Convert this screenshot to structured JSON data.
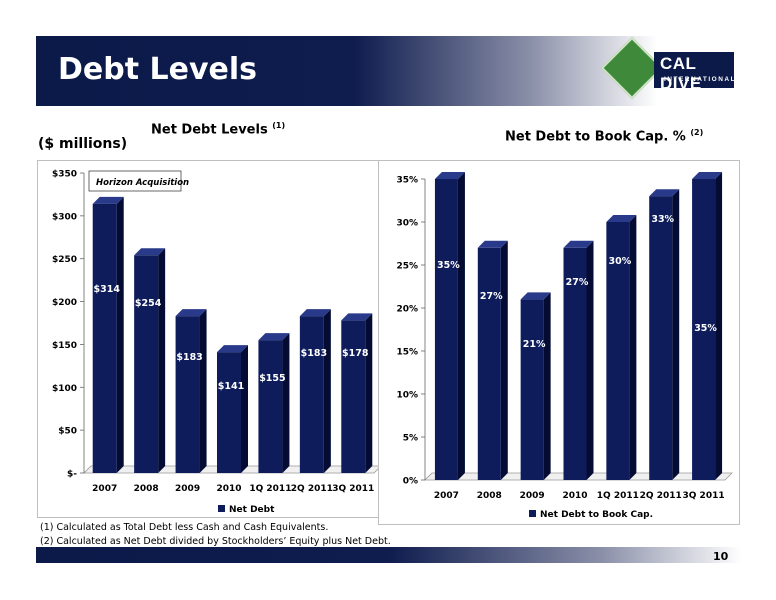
{
  "slide": {
    "title": "Debt Levels",
    "page_number": "10",
    "units_label": "($ millions)",
    "footnotes": [
      "(1)  Calculated as Total Debt less Cash and Cash Equivalents.",
      "(2)  Calculated as Net Debt divided by Stockholders’ Equity plus Net Debt."
    ]
  },
  "logo": {
    "name": "CAL DIVE",
    "sub": "INTERNATIONAL"
  },
  "colors": {
    "bar": "#0e1c5c",
    "bar_side": "#050c33",
    "bar_top": "#2a3a8a",
    "header": "#0c1a4a"
  },
  "chart_data": [
    {
      "type": "bar",
      "title": "Net Debt Levels",
      "title_note": "(1)",
      "categories": [
        "2007",
        "2008",
        "2009",
        "2010",
        "1Q 2011",
        "2Q 2011",
        "3Q 2011"
      ],
      "series": [
        {
          "name": "Net Debt",
          "values": [
            314,
            254,
            183,
            141,
            155,
            183,
            178
          ]
        }
      ],
      "data_labels": [
        "$314",
        "$254",
        "$183",
        "$141",
        "$155",
        "$183",
        "$178"
      ],
      "yticks": [
        "$-",
        "$50",
        "$100",
        "$150",
        "$200",
        "$250",
        "$300",
        "$350"
      ],
      "ylim": [
        0,
        350
      ],
      "annotation": "Horizon Acquisition",
      "legend": "bottom"
    },
    {
      "type": "bar",
      "title": "Net Debt to Book Cap. %",
      "title_note": "(2)",
      "categories": [
        "2007",
        "2008",
        "2009",
        "2010",
        "1Q 2011",
        "2Q 2011",
        "3Q 2011"
      ],
      "series": [
        {
          "name": "Net Debt to Book Cap.",
          "values": [
            35,
            27,
            21,
            27,
            30,
            33,
            35
          ]
        }
      ],
      "data_labels": [
        "35%",
        "27%",
        "21%",
        "27%",
        "30%",
        "33%",
        "35%"
      ],
      "yticks": [
        "0%",
        "5%",
        "10%",
        "15%",
        "20%",
        "25%",
        "30%",
        "35%"
      ],
      "ylim": [
        0,
        35
      ],
      "legend": "bottom"
    }
  ]
}
